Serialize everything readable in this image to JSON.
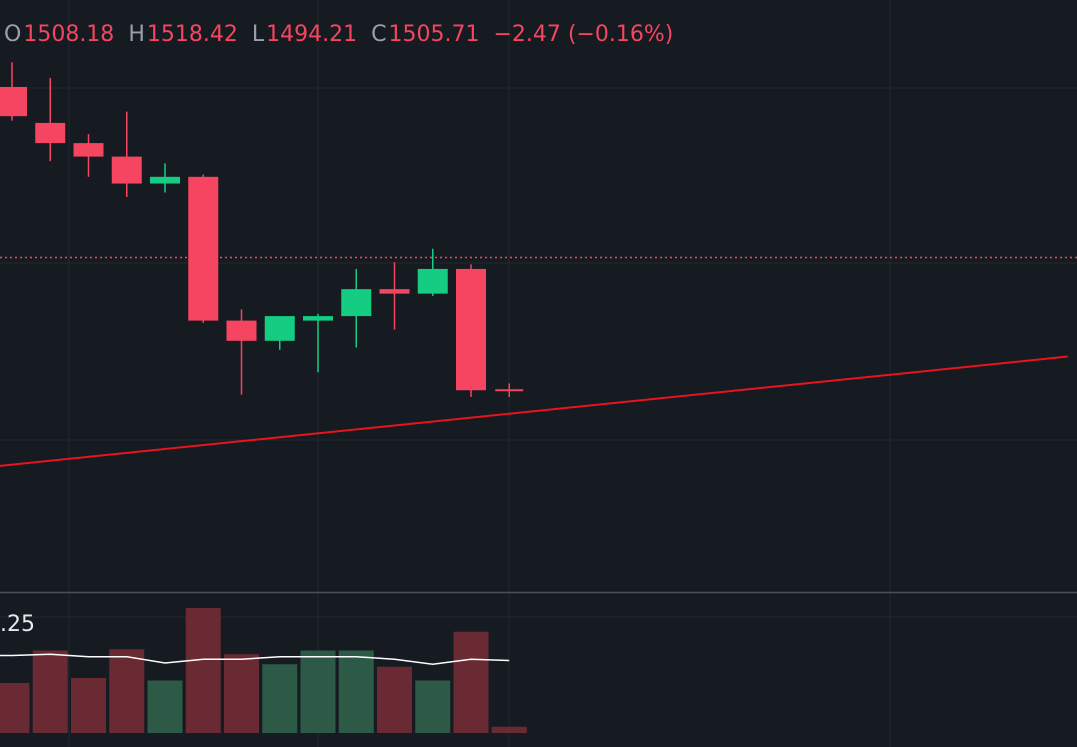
{
  "legend": {
    "open_label": "O",
    "open_value": "1508.18",
    "high_label": "H",
    "high_value": "1518.42",
    "low_label": "L",
    "low_value": "1494.21",
    "close_label": "C",
    "close_value": "1505.71",
    "change": "−2.47 (−0.16%)"
  },
  "volume_label": ".25",
  "colors": {
    "background": "#161a21",
    "up": "#14cc82",
    "down": "#f64560",
    "volume_up": "#2c5a47",
    "volume_down": "#6a2a34",
    "trendline": "#e8141e",
    "price_line": "#f64560",
    "volume_ma": "#ffffff",
    "grid": "#232830"
  },
  "chart_data": {
    "type": "candlestick",
    "ylim": [
      1493,
      1514.5
    ],
    "last_price": 1505.71,
    "candles": [
      {
        "o": 1513.3,
        "h": 1514.4,
        "l": 1511.8,
        "c": 1512.0
      },
      {
        "o": 1511.7,
        "h": 1513.7,
        "l": 1510.0,
        "c": 1510.8
      },
      {
        "o": 1510.8,
        "h": 1511.2,
        "l": 1509.3,
        "c": 1510.2
      },
      {
        "o": 1510.2,
        "h": 1512.2,
        "l": 1508.4,
        "c": 1509.0
      },
      {
        "o": 1509.0,
        "h": 1509.9,
        "l": 1508.6,
        "c": 1509.3
      },
      {
        "o": 1509.3,
        "h": 1509.4,
        "l": 1502.8,
        "c": 1502.9
      },
      {
        "o": 1502.9,
        "h": 1503.4,
        "l": 1499.6,
        "c": 1502.0
      },
      {
        "o": 1502.0,
        "h": 1503.1,
        "l": 1501.6,
        "c": 1503.1
      },
      {
        "o": 1502.9,
        "h": 1503.2,
        "l": 1500.6,
        "c": 1503.1
      },
      {
        "o": 1503.1,
        "h": 1505.2,
        "l": 1501.7,
        "c": 1504.3
      },
      {
        "o": 1504.3,
        "h": 1505.5,
        "l": 1502.5,
        "c": 1504.1
      },
      {
        "o": 1504.1,
        "h": 1506.1,
        "l": 1504.0,
        "c": 1505.2
      },
      {
        "o": 1505.2,
        "h": 1505.4,
        "l": 1499.5,
        "c": 1499.8
      },
      {
        "o": 1499.8,
        "h": 1500.1,
        "l": 1499.5,
        "c": 1499.8
      }
    ],
    "volumes": [
      {
        "v": 0.4,
        "dir": "down"
      },
      {
        "v": 0.66,
        "dir": "down"
      },
      {
        "v": 0.44,
        "dir": "down"
      },
      {
        "v": 0.67,
        "dir": "down"
      },
      {
        "v": 0.42,
        "dir": "up"
      },
      {
        "v": 1.0,
        "dir": "down"
      },
      {
        "v": 0.63,
        "dir": "down"
      },
      {
        "v": 0.55,
        "dir": "up"
      },
      {
        "v": 0.66,
        "dir": "up"
      },
      {
        "v": 0.66,
        "dir": "up"
      },
      {
        "v": 0.53,
        "dir": "down"
      },
      {
        "v": 0.42,
        "dir": "up"
      },
      {
        "v": 0.81,
        "dir": "down"
      },
      {
        "v": 0.05,
        "dir": "down"
      }
    ],
    "volume_ma": [
      0.62,
      0.63,
      0.61,
      0.61,
      0.56,
      0.59,
      0.59,
      0.61,
      0.61,
      0.61,
      0.59,
      0.55,
      0.59,
      0.58
    ],
    "trendline": {
      "start": [
        -0.5,
        1496.4
      ],
      "end": [
        27.6,
        1501.3
      ]
    }
  }
}
